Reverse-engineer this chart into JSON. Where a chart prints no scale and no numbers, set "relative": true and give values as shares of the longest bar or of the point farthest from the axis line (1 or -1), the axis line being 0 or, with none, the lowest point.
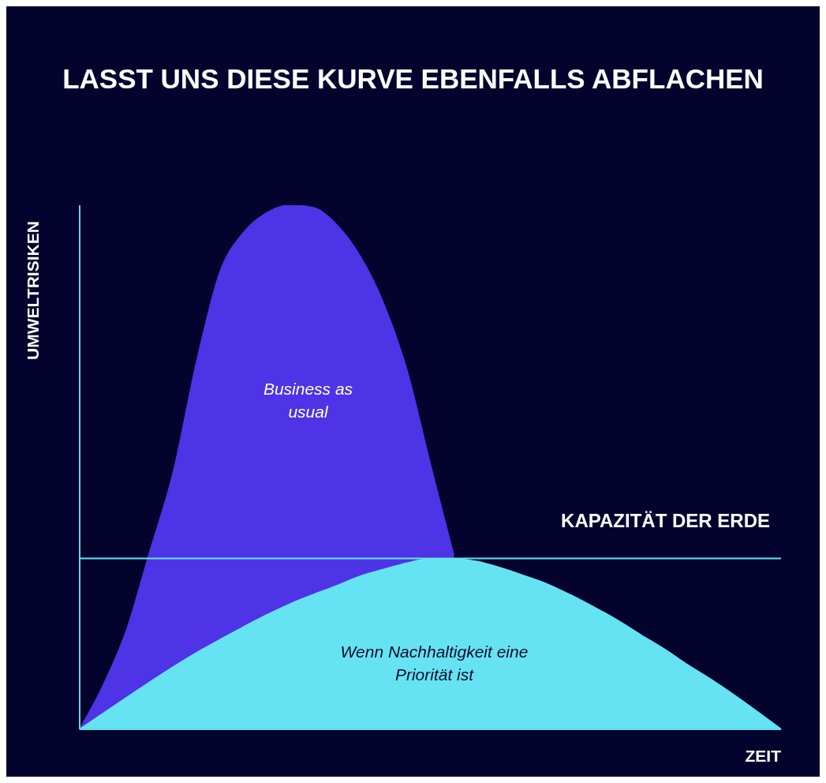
{
  "chart_data": {
    "type": "area",
    "title": "LASST UNS DIESE KURVE EBENFALLS ABFLACHEN",
    "xlabel": "ZEIT",
    "ylabel": "UMWELTRISIKEN",
    "relative": true,
    "categories": [
      null,
      null,
      null,
      null,
      null,
      null,
      null,
      null,
      null,
      null,
      null,
      null,
      null,
      null,
      null,
      null,
      null,
      null,
      null,
      null,
      null,
      null,
      null,
      null,
      null,
      null,
      null,
      null,
      null,
      null,
      null
    ],
    "series": [
      {
        "name": "Business as usual",
        "color": "#4f33e6",
        "values": [
          0,
          0.083,
          0.188,
          0.338,
          0.489,
          0.7,
          0.872,
          0.947,
          0.985,
          1,
          0.995,
          0.962,
          0.902,
          0.812,
          0.684,
          0.504,
          0.331,
          null,
          null,
          null,
          null,
          null,
          null,
          null,
          null,
          null,
          null,
          null,
          null,
          null,
          null
        ]
      },
      {
        "name": "Wenn Nachhaltigkeit eine Priorität ist",
        "color": "#66e3f2",
        "values": [
          0,
          0.03,
          0.06,
          0.09,
          0.119,
          0.146,
          0.171,
          0.195,
          0.218,
          0.239,
          0.257,
          0.274,
          0.292,
          0.305,
          0.317,
          0.325,
          0.325,
          0.32,
          0.308,
          0.293,
          0.277,
          0.256,
          0.233,
          0.208,
          0.18,
          0.153,
          0.123,
          0.095,
          0.065,
          0.033,
          0
        ]
      }
    ],
    "ref_lines": [
      {
        "axis": "y",
        "value": 0.326,
        "label": "KAPAZITÄT DER ERDE",
        "color": "#66e3f2"
      }
    ]
  }
}
